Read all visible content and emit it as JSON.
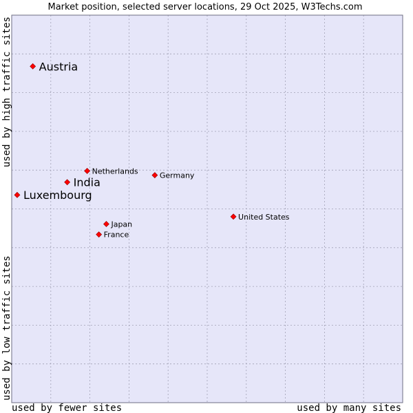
{
  "chart_data": {
    "type": "scatter",
    "title": "Market position, selected server locations, 29 Oct 2025, W3Techs.com",
    "xlabel_left": "used by fewer sites",
    "xlabel_right": "used by many sites",
    "ylabel_bottom": "used by low traffic sites",
    "ylabel_top": "used by high traffic sites",
    "xlim": [
      0,
      100
    ],
    "ylim": [
      0,
      100
    ],
    "grid": true,
    "colors": {
      "plot_background": "#e6e6f9",
      "grid": "#a0a0b4",
      "border": "#6e6e82",
      "marker": "#ff0000",
      "marker_edge": "#8b0000"
    },
    "points": [
      {
        "name": "Austria",
        "x": 5.4,
        "y": 86.8,
        "emphasis": true
      },
      {
        "name": "Netherlands",
        "x": 19.3,
        "y": 59.8,
        "emphasis": false
      },
      {
        "name": "Germany",
        "x": 36.6,
        "y": 58.7,
        "emphasis": false
      },
      {
        "name": "India",
        "x": 14.2,
        "y": 56.9,
        "emphasis": true
      },
      {
        "name": "Luxembourg",
        "x": 1.4,
        "y": 53.6,
        "emphasis": true
      },
      {
        "name": "United States",
        "x": 56.7,
        "y": 48.0,
        "emphasis": false
      },
      {
        "name": "Japan",
        "x": 24.2,
        "y": 46.1,
        "emphasis": false
      },
      {
        "name": "France",
        "x": 22.3,
        "y": 43.4,
        "emphasis": false
      }
    ]
  }
}
